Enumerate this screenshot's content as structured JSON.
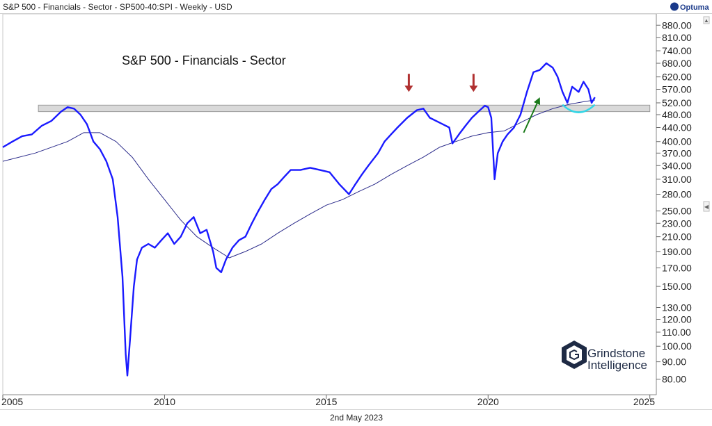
{
  "header": {
    "title": "S&P 500 - Financials - Sector - SP500-40:SPI - Weekly - USD",
    "brand": "Optuma"
  },
  "footer": {
    "date": "2nd May 2023"
  },
  "watermark": {
    "line1": "Grindstone",
    "line2": "Intelligence"
  },
  "colors": {
    "price": "#1a1aff",
    "moving_average": "#2a2a8a",
    "resistance_band": "#d9d9d9",
    "arrow_down": "#b03030",
    "arrow_up": "#1a7a1a",
    "highlight_arc": "#33d6e6"
  },
  "chart_data": {
    "type": "line",
    "title": "S&P 500 - Financials - Sector",
    "xlabel": "",
    "ylabel": "",
    "y_scale": "log",
    "xlim": [
      2005.0,
      2025.2
    ],
    "ylim": [
      72,
      950
    ],
    "grid": false,
    "x_ticks": [
      {
        "value": 2005,
        "label": "2005"
      },
      {
        "value": 2010,
        "label": "2010"
      },
      {
        "value": 2015,
        "label": "2015"
      },
      {
        "value": 2020,
        "label": "2020"
      },
      {
        "value": 2025,
        "label": "2025"
      }
    ],
    "y_ticks": [
      "880.00",
      "810.00",
      "740.00",
      "680.00",
      "620.00",
      "570.00",
      "520.00",
      "480.00",
      "440.00",
      "400.00",
      "370.00",
      "340.00",
      "310.00",
      "280.00",
      "250.00",
      "230.00",
      "210.00",
      "190.00",
      "170.00",
      "150.00",
      "130.00",
      "120.00",
      "110.00",
      "100.00",
      "90.00",
      "80.00"
    ],
    "series": [
      {
        "role": "price",
        "x": [
          2005.0,
          2005.3,
          2005.6,
          2005.9,
          2006.2,
          2006.5,
          2006.8,
          2007.0,
          2007.2,
          2007.4,
          2007.6,
          2007.8,
          2008.0,
          2008.2,
          2008.4,
          2008.55,
          2008.7,
          2008.8,
          2008.85,
          2008.95,
          2009.05,
          2009.15,
          2009.3,
          2009.5,
          2009.7,
          2009.9,
          2010.1,
          2010.3,
          2010.5,
          2010.7,
          2010.9,
          2011.1,
          2011.3,
          2011.5,
          2011.6,
          2011.75,
          2011.9,
          2012.1,
          2012.3,
          2012.5,
          2012.7,
          2012.9,
          2013.1,
          2013.3,
          2013.5,
          2013.7,
          2013.9,
          2014.2,
          2014.5,
          2014.8,
          2015.1,
          2015.4,
          2015.7,
          2015.9,
          2016.1,
          2016.3,
          2016.6,
          2016.8,
          2017.0,
          2017.2,
          2017.5,
          2017.8,
          2018.0,
          2018.2,
          2018.5,
          2018.8,
          2018.9,
          2019.1,
          2019.3,
          2019.5,
          2019.7,
          2019.9,
          2020.0,
          2020.1,
          2020.2,
          2020.3,
          2020.45,
          2020.6,
          2020.8,
          2021.0,
          2021.2,
          2021.4,
          2021.6,
          2021.8,
          2022.0,
          2022.15,
          2022.3,
          2022.45,
          2022.6,
          2022.8,
          2022.95,
          2023.1,
          2023.2,
          2023.3
        ],
        "values": [
          385,
          400,
          415,
          420,
          445,
          460,
          490,
          505,
          500,
          480,
          450,
          400,
          380,
          350,
          310,
          240,
          160,
          95,
          82,
          110,
          150,
          180,
          195,
          200,
          195,
          205,
          215,
          200,
          210,
          230,
          240,
          215,
          220,
          190,
          170,
          165,
          180,
          195,
          205,
          210,
          230,
          250,
          270,
          290,
          300,
          315,
          330,
          330,
          335,
          330,
          325,
          300,
          280,
          300,
          320,
          340,
          370,
          400,
          420,
          440,
          470,
          495,
          500,
          470,
          455,
          440,
          395,
          420,
          445,
          470,
          490,
          510,
          505,
          470,
          310,
          370,
          400,
          420,
          440,
          480,
          560,
          640,
          650,
          680,
          660,
          620,
          560,
          520,
          580,
          560,
          600,
          570,
          520,
          540
        ]
      },
      {
        "role": "moving_average",
        "x": [
          2005.0,
          2006.0,
          2007.0,
          2007.5,
          2008.0,
          2008.5,
          2009.0,
          2009.5,
          2010.0,
          2010.5,
          2011.0,
          2011.5,
          2012.0,
          2012.5,
          2013.0,
          2013.5,
          2014.0,
          2014.5,
          2015.0,
          2015.5,
          2016.0,
          2016.5,
          2017.0,
          2017.5,
          2018.0,
          2018.5,
          2019.0,
          2019.5,
          2020.0,
          2020.5,
          2021.0,
          2021.5,
          2022.0,
          2022.5,
          2023.0,
          2023.3
        ],
        "values": [
          350,
          370,
          400,
          425,
          425,
          400,
          360,
          310,
          270,
          235,
          210,
          195,
          182,
          190,
          200,
          215,
          230,
          245,
          260,
          270,
          285,
          300,
          320,
          340,
          360,
          385,
          400,
          415,
          425,
          430,
          455,
          480,
          500,
          515,
          525,
          530
        ]
      }
    ],
    "annotations": [
      {
        "type": "text",
        "text": "S&P 500 - Financials - Sector"
      },
      {
        "type": "band",
        "y1": 490,
        "y2": 512,
        "x1": 2006.1,
        "x2": 2025.0
      },
      {
        "type": "arrow_down",
        "x": 2017.55,
        "y": 560
      },
      {
        "type": "arrow_down",
        "x": 2019.55,
        "y": 560
      },
      {
        "type": "arrow_up",
        "x1": 2021.1,
        "y1": 425,
        "x2": 2021.6,
        "y2": 540
      },
      {
        "type": "arc",
        "x1": 2022.3,
        "x2": 2023.3,
        "y": 490
      }
    ]
  }
}
